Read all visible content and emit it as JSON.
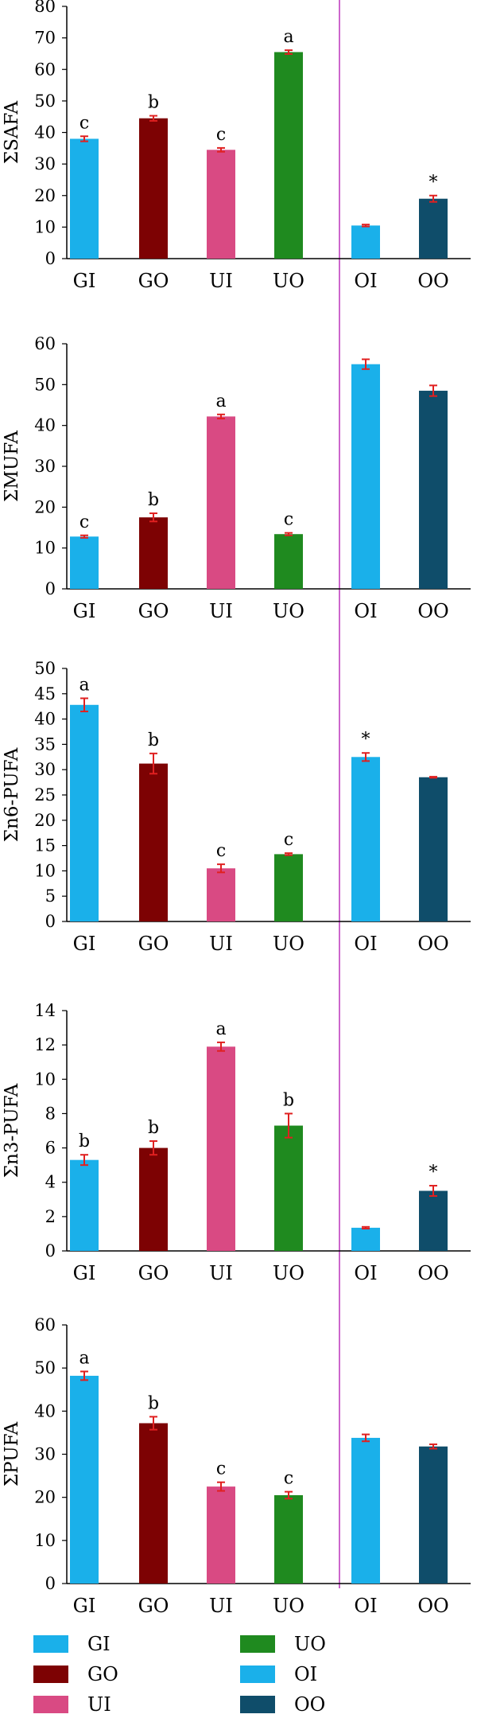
{
  "chart_data": [
    {
      "type": "bar",
      "ylabel": "ΣSAFA",
      "ylim": [
        0,
        80
      ],
      "yticks": [
        0,
        10,
        20,
        30,
        40,
        50,
        60,
        70,
        80
      ],
      "categories": [
        "GI",
        "GO",
        "UI",
        "UO",
        "OI",
        "OO"
      ],
      "values": [
        38,
        44.5,
        34.5,
        65.5,
        10.5,
        19
      ],
      "errors": [
        0.8,
        0.8,
        0.6,
        0.6,
        0.3,
        1.0
      ],
      "labels": [
        "c",
        "b",
        "c",
        "a",
        "",
        "*"
      ]
    },
    {
      "type": "bar",
      "ylabel": "ΣMUFA",
      "ylim": [
        0,
        60
      ],
      "yticks": [
        0,
        10,
        20,
        30,
        40,
        50,
        60
      ],
      "categories": [
        "GI",
        "GO",
        "UI",
        "UO",
        "OI",
        "OO"
      ],
      "values": [
        12.8,
        17.5,
        42.2,
        13.4,
        55,
        48.5
      ],
      "errors": [
        0.3,
        1.0,
        0.5,
        0.3,
        1.2,
        1.3
      ],
      "labels": [
        "c",
        "b",
        "a",
        "c",
        "",
        ""
      ]
    },
    {
      "type": "bar",
      "ylabel": "Σn6-PUFA",
      "ylim": [
        0,
        50
      ],
      "yticks": [
        0,
        5,
        10,
        15,
        20,
        25,
        30,
        35,
        40,
        45,
        50
      ],
      "categories": [
        "GI",
        "GO",
        "UI",
        "UO",
        "OI",
        "OO"
      ],
      "values": [
        42.8,
        31.2,
        10.5,
        13.3,
        32.5,
        28.5
      ],
      "errors": [
        1.3,
        2.0,
        0.8,
        0.2,
        0.8,
        0.1
      ],
      "labels": [
        "a",
        "b",
        "c",
        "c",
        "*",
        ""
      ]
    },
    {
      "type": "bar",
      "ylabel": "Σn3-PUFA",
      "ylim": [
        0,
        14
      ],
      "yticks": [
        0,
        2,
        4,
        6,
        8,
        10,
        12,
        14
      ],
      "categories": [
        "GI",
        "GO",
        "UI",
        "UO",
        "OI",
        "OO"
      ],
      "values": [
        5.3,
        6.0,
        11.9,
        7.3,
        1.35,
        3.5
      ],
      "errors": [
        0.3,
        0.4,
        0.25,
        0.7,
        0.05,
        0.3
      ],
      "labels": [
        "b",
        "b",
        "a",
        "b",
        "",
        "*"
      ]
    },
    {
      "type": "bar",
      "ylabel": "ΣPUFA",
      "ylim": [
        0,
        60
      ],
      "yticks": [
        0,
        10,
        20,
        30,
        40,
        50,
        60
      ],
      "categories": [
        "GI",
        "GO",
        "UI",
        "UO",
        "OI",
        "OO"
      ],
      "values": [
        48.2,
        37.2,
        22.5,
        20.5,
        33.8,
        31.8
      ],
      "errors": [
        1.0,
        1.5,
        1.0,
        0.8,
        0.8,
        0.5
      ],
      "labels": [
        "a",
        "b",
        "c",
        "c",
        "",
        ""
      ]
    }
  ],
  "colors": {
    "GI": "#1ab0ea",
    "GO": "#7d0203",
    "UI": "#d94a83",
    "UO": "#1f8a1f",
    "OI": "#1ab0ea",
    "OO": "#0f4d6a",
    "error_bar": "#e02020",
    "divider": "#cc66cc"
  },
  "legend": [
    {
      "label": "GI",
      "color": "#1ab0ea"
    },
    {
      "label": "UO",
      "color": "#1f8a1f"
    },
    {
      "label": "GO",
      "color": "#7d0203"
    },
    {
      "label": "OI",
      "color": "#1ab0ea"
    },
    {
      "label": "UI",
      "color": "#d94a83"
    },
    {
      "label": "OO",
      "color": "#0f4d6a"
    }
  ]
}
